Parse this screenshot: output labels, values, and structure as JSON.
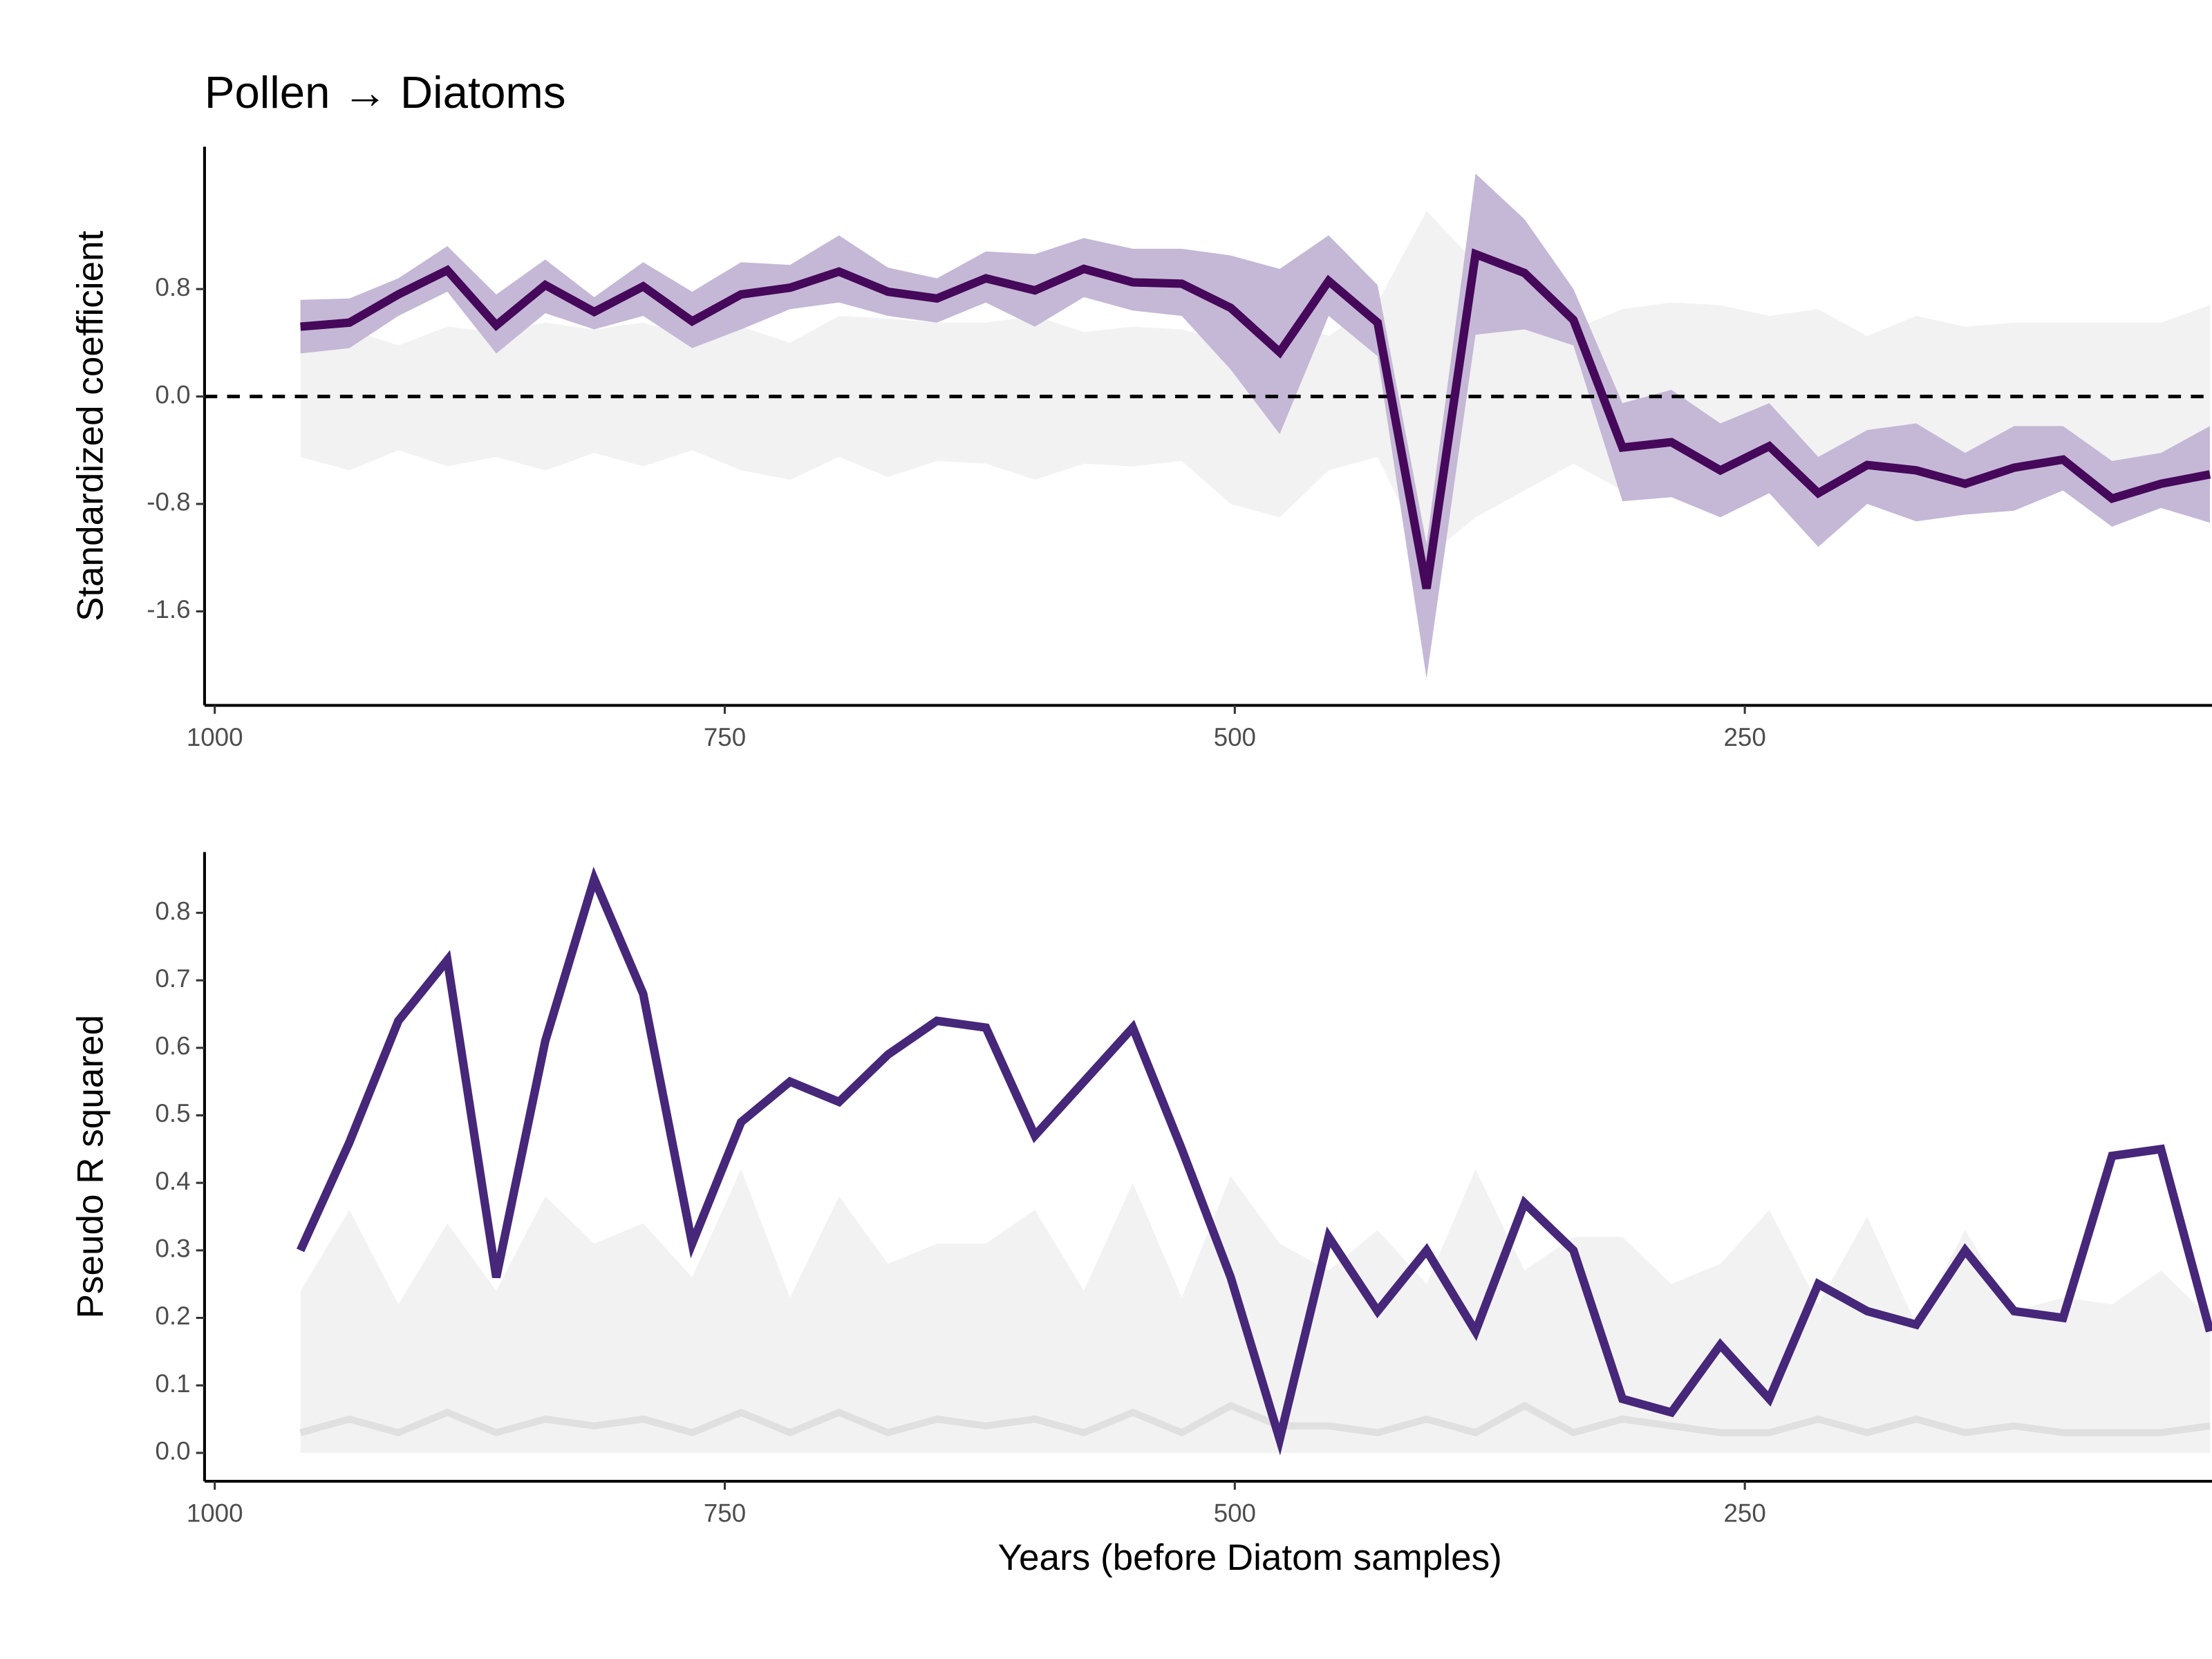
{
  "chart_data": [
    {
      "type": "line",
      "title": "Pollen → Diatoms",
      "ylabel": "Standardized coefficient",
      "x": [
        958,
        934,
        910,
        886,
        862,
        838,
        814,
        790,
        766,
        742,
        718,
        694,
        670,
        646,
        622,
        598,
        574,
        550,
        526,
        502,
        478,
        454,
        430,
        406,
        382,
        358,
        334,
        310,
        286,
        262,
        238,
        214,
        190,
        166,
        142,
        118,
        94,
        70,
        46,
        22
      ],
      "xlim": [
        1005,
        21
      ],
      "xticks": [
        1000,
        750,
        500,
        250
      ],
      "ylim": [
        -2.3,
        1.86
      ],
      "yticks": [
        0.8,
        {
          "value": 0,
          "label": "0.0"
        },
        -0.8,
        -1.6
      ],
      "hline": 0,
      "bands": [
        {
          "color": "#f2f2f2",
          "upper": [
            0.55,
            0.5,
            0.38,
            0.52,
            0.48,
            0.55,
            0.5,
            0.55,
            0.45,
            0.52,
            0.4,
            0.6,
            0.58,
            0.55,
            0.55,
            0.6,
            0.48,
            0.52,
            0.5,
            0.4,
            0.6,
            0.45,
            0.7,
            1.38,
            1.0,
            0.6,
            0.5,
            0.65,
            0.7,
            0.68,
            0.6,
            0.65,
            0.45,
            0.6,
            0.52,
            0.55,
            0.55,
            0.55,
            0.55,
            0.68
          ],
          "lower": [
            -0.45,
            -0.55,
            -0.4,
            -0.52,
            -0.45,
            -0.55,
            -0.42,
            -0.52,
            -0.4,
            -0.55,
            -0.62,
            -0.45,
            -0.6,
            -0.48,
            -0.5,
            -0.62,
            -0.5,
            -0.52,
            -0.48,
            -0.8,
            -0.9,
            -0.55,
            -0.45,
            -1.2,
            -0.9,
            -0.7,
            -0.5,
            -0.7,
            -0.6,
            -0.7,
            -0.55,
            -0.75,
            -0.65,
            -0.6,
            -0.65,
            -0.55,
            -0.65,
            -0.7,
            -0.6,
            -0.65
          ]
        },
        {
          "color": "#c5b8d6",
          "upper": [
            0.72,
            0.73,
            0.88,
            1.12,
            0.76,
            1.02,
            0.74,
            1.0,
            0.78,
            1.0,
            0.98,
            1.2,
            0.96,
            0.88,
            1.08,
            1.06,
            1.18,
            1.1,
            1.1,
            1.05,
            0.95,
            1.2,
            0.83,
            -1.1,
            1.66,
            1.32,
            0.8,
            -0.05,
            0.05,
            -0.2,
            -0.05,
            -0.45,
            -0.25,
            -0.2,
            -0.42,
            -0.22,
            -0.22,
            -0.48,
            -0.42,
            -0.22
          ],
          "lower": [
            0.32,
            0.36,
            0.6,
            0.78,
            0.32,
            0.62,
            0.5,
            0.6,
            0.36,
            0.5,
            0.65,
            0.7,
            0.6,
            0.55,
            0.7,
            0.52,
            0.74,
            0.64,
            0.6,
            0.2,
            -0.28,
            0.6,
            0.3,
            -2.1,
            0.46,
            0.5,
            0.38,
            -0.78,
            -0.75,
            -0.9,
            -0.72,
            -1.12,
            -0.8,
            -0.93,
            -0.88,
            -0.85,
            -0.7,
            -0.97,
            -0.83,
            -0.94
          ]
        }
      ],
      "series": [
        {
          "color": "#45085a",
          "width": 6,
          "values": [
            0.52,
            0.55,
            0.76,
            0.94,
            0.53,
            0.83,
            0.63,
            0.82,
            0.56,
            0.76,
            0.81,
            0.93,
            0.78,
            0.73,
            0.88,
            0.79,
            0.95,
            0.85,
            0.84,
            0.66,
            0.33,
            0.86,
            0.55,
            -1.43,
            1.06,
            0.92,
            0.57,
            -0.38,
            -0.34,
            -0.55,
            -0.37,
            -0.72,
            -0.51,
            -0.55,
            -0.65,
            -0.53,
            -0.47,
            -0.76,
            -0.65,
            -0.58
          ]
        }
      ]
    },
    {
      "type": "line",
      "ylabel": "Pseudo R squared",
      "xlabel": "Years (before Diatom samples)",
      "x": [
        958,
        934,
        910,
        886,
        862,
        838,
        814,
        790,
        766,
        742,
        718,
        694,
        670,
        646,
        622,
        598,
        574,
        550,
        526,
        502,
        478,
        454,
        430,
        406,
        382,
        358,
        334,
        310,
        286,
        262,
        238,
        214,
        190,
        166,
        142,
        118,
        94,
        70,
        46,
        22
      ],
      "xlim": [
        1005,
        21
      ],
      "xticks": [
        1000,
        750,
        500,
        250
      ],
      "ylim": [
        -0.042,
        0.89
      ],
      "yticks": [
        {
          "value": 0,
          "label": "0.0"
        },
        0.1,
        0.2,
        0.3,
        0.4,
        0.5,
        0.6,
        0.7,
        0.8
      ],
      "bands": [
        {
          "color": "#f2f2f2",
          "upper": [
            0.24,
            0.36,
            0.22,
            0.34,
            0.24,
            0.38,
            0.31,
            0.34,
            0.26,
            0.42,
            0.23,
            0.38,
            0.28,
            0.31,
            0.31,
            0.36,
            0.24,
            0.4,
            0.23,
            0.41,
            0.31,
            0.27,
            0.33,
            0.25,
            0.42,
            0.27,
            0.32,
            0.32,
            0.25,
            0.28,
            0.36,
            0.22,
            0.35,
            0.19,
            0.33,
            0.21,
            0.23,
            0.22,
            0.27,
            0.2
          ],
          "lower": [
            0,
            0,
            0,
            0,
            0,
            0,
            0,
            0,
            0,
            0,
            0,
            0,
            0,
            0,
            0,
            0,
            0,
            0,
            0,
            0,
            0,
            0,
            0,
            0,
            0,
            0,
            0,
            0,
            0,
            0,
            0,
            0,
            0,
            0,
            0,
            0,
            0,
            0,
            0,
            0
          ]
        }
      ],
      "series": [
        {
          "color": "#e0e0e0",
          "width": 5,
          "values": [
            0.03,
            0.05,
            0.03,
            0.06,
            0.03,
            0.05,
            0.04,
            0.05,
            0.03,
            0.06,
            0.03,
            0.06,
            0.03,
            0.05,
            0.04,
            0.05,
            0.03,
            0.06,
            0.03,
            0.07,
            0.04,
            0.04,
            0.03,
            0.05,
            0.03,
            0.07,
            0.03,
            0.05,
            0.04,
            0.03,
            0.03,
            0.05,
            0.03,
            0.05,
            0.03,
            0.04,
            0.03,
            0.03,
            0.03,
            0.04
          ]
        },
        {
          "color": "#46277a",
          "width": 6,
          "values": [
            0.3,
            0.46,
            0.64,
            0.73,
            0.26,
            0.61,
            0.85,
            0.68,
            0.31,
            0.49,
            0.55,
            0.52,
            0.59,
            0.64,
            0.63,
            0.47,
            0.55,
            0.63,
            0.45,
            0.26,
            0.02,
            0.32,
            0.21,
            0.3,
            0.18,
            0.37,
            0.3,
            0.08,
            0.06,
            0.16,
            0.08,
            0.25,
            0.21,
            0.19,
            0.3,
            0.21,
            0.2,
            0.44,
            0.45,
            0.18
          ]
        }
      ]
    }
  ]
}
